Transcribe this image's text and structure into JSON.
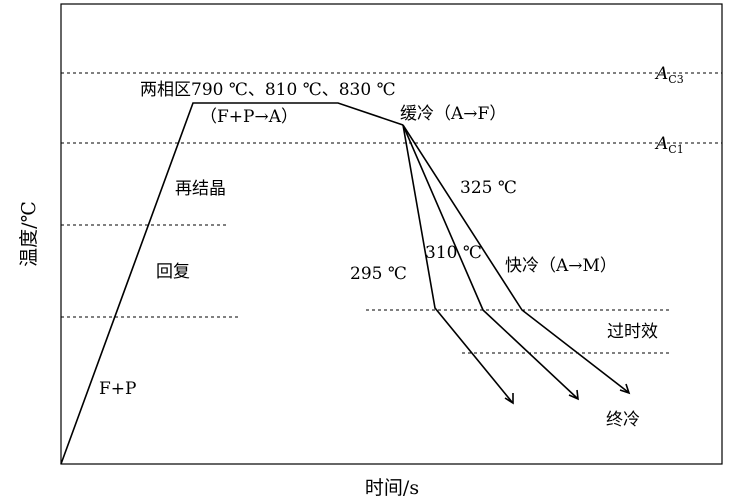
{
  "diagram": {
    "y_axis_label": "温度/℃",
    "x_axis_label": "时间/s",
    "ac3_label": {
      "main": "A",
      "sub": "C3"
    },
    "ac1_label": {
      "main": "A",
      "sub": "C1"
    },
    "two_phase_label": "两相区790 ℃、810 ℃、830 ℃",
    "fp_to_a_label": "（F+P→A）",
    "slow_cool_label": "缓冷（A→F）",
    "recrystallization_label": "再结晶",
    "recovery_label": "回复",
    "fp_label": "F+P",
    "temp_325_label": "325 ℃",
    "temp_310_label": "310 ℃",
    "temp_295_label": "295 ℃",
    "fast_cool_label": "快冷（A→M）",
    "overaging_label": "过时效",
    "final_cool_label": "终冷"
  }
}
